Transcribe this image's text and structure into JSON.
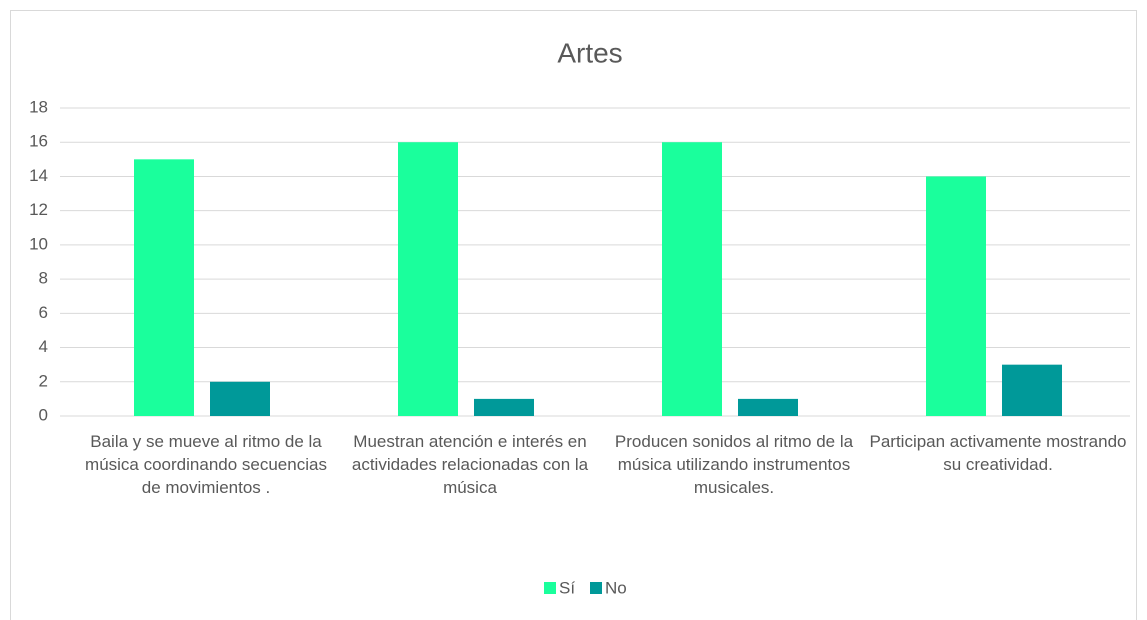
{
  "chart_data": {
    "type": "bar",
    "title": "Artes",
    "categories": [
      "Baila y se mueve al ritmo de la música coordinando secuencias de movimientos .",
      "Muestran atención e interés en actividades relacionadas con la música",
      "Producen sonidos al ritmo de la música utilizando instrumentos musicales.",
      "Participan activamente mostrando su creatividad."
    ],
    "series": [
      {
        "name": "Sí",
        "color": "#1aff9c",
        "values": [
          15,
          16,
          16,
          14
        ]
      },
      {
        "name": "No",
        "color": "#009999",
        "values": [
          2,
          1,
          1,
          3
        ]
      }
    ],
    "ylim": [
      0,
      18
    ],
    "yticks": [
      0,
      2,
      4,
      6,
      8,
      10,
      12,
      14,
      16,
      18
    ],
    "grid": true,
    "legend": "bottom"
  }
}
